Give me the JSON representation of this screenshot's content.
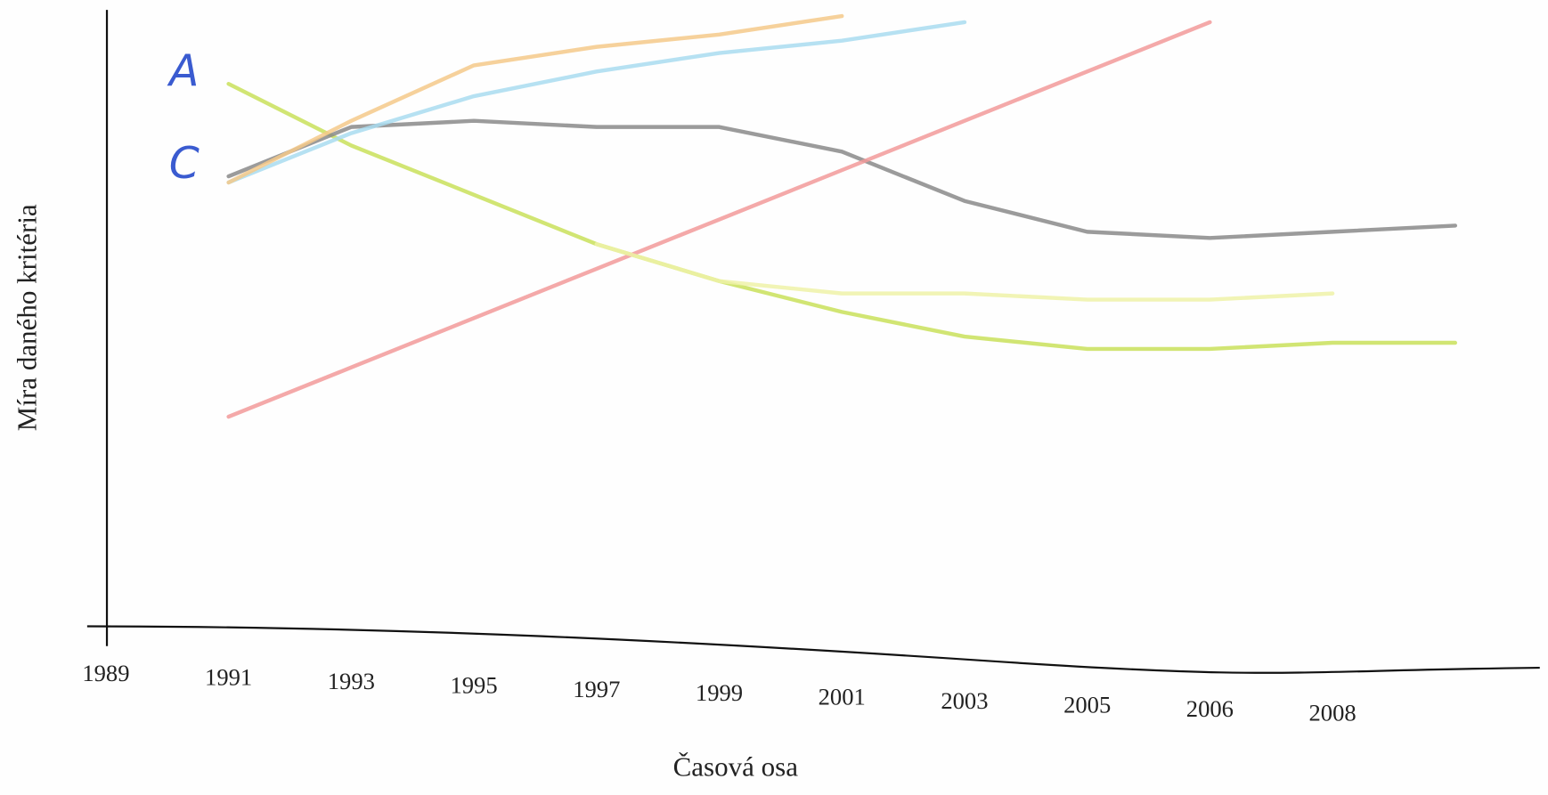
{
  "chart_data": {
    "type": "line",
    "x_label": "Časová osa",
    "y_label": "Míra daného kritéria",
    "categories": [
      "1989",
      "1991",
      "1993",
      "1995",
      "1997",
      "1999",
      "2001",
      "2003",
      "2005",
      "2006",
      "2008",
      null
    ],
    "ylim": [
      0,
      100
    ],
    "series": [
      {
        "name": "A",
        "color": "#c9e05a",
        "values": [
          null,
          88,
          78,
          70,
          62,
          56,
          51,
          47,
          45,
          45,
          46,
          46
        ]
      },
      {
        "name": "C",
        "color": "#8a8a8a",
        "values": [
          null,
          73,
          81,
          82,
          81,
          81,
          77,
          69,
          64,
          63,
          64,
          65
        ]
      },
      {
        "color": "#f29a9a",
        "values": [
          null,
          34,
          42,
          50,
          58,
          66,
          74,
          82,
          90,
          98,
          null,
          null
        ]
      },
      {
        "color": "#a9dcf0",
        "values": [
          null,
          72,
          80,
          86,
          90,
          93,
          95,
          98,
          null,
          null,
          null,
          null
        ]
      },
      {
        "color": "#f5c98a",
        "values": [
          null,
          72,
          82,
          91,
          94,
          96,
          99,
          null,
          null,
          null,
          null,
          null
        ]
      },
      {
        "color": "#eef2a8",
        "values": [
          null,
          null,
          null,
          null,
          62,
          56,
          54,
          54,
          53,
          53,
          54,
          null
        ]
      }
    ]
  }
}
